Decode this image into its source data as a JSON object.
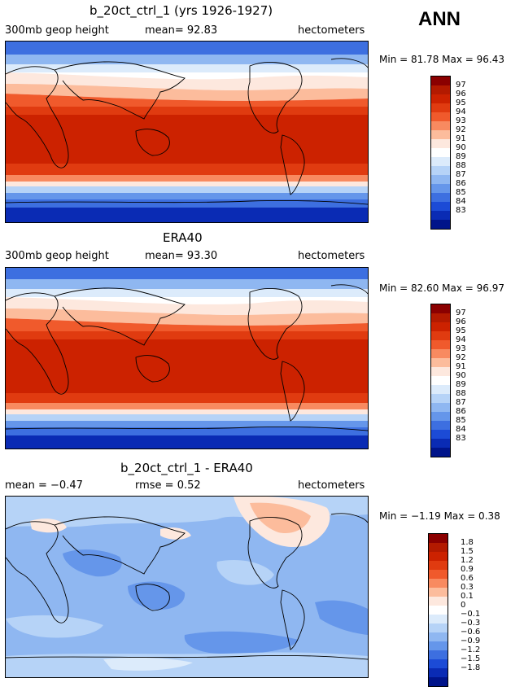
{
  "season": "ANN",
  "panels": [
    {
      "title": "b_20ct_ctrl_1 (yrs 1926-1927)",
      "left": "300mb geop height",
      "center": "mean=  92.83",
      "right": "hectometers",
      "minmax": "Min =  81.78 Max =  96.43",
      "colorbar_labels": [
        "97",
        "96",
        "95",
        "94",
        "93",
        "92",
        "91",
        "90",
        "89",
        "88",
        "87",
        "86",
        "85",
        "84",
        "83"
      ]
    },
    {
      "title": "ERA40",
      "left": "300mb geop height",
      "center": "mean=  93.30",
      "right": "hectometers",
      "minmax": "Min =  82.60 Max =  96.97",
      "colorbar_labels": [
        "97",
        "96",
        "95",
        "94",
        "93",
        "92",
        "91",
        "90",
        "89",
        "88",
        "87",
        "86",
        "85",
        "84",
        "83"
      ]
    },
    {
      "title": "b_20ct_ctrl_1 - ERA40",
      "left": "mean =  −0.47",
      "center": "rmse =   0.52",
      "right": "hectometers",
      "minmax": "Min =  −1.19 Max =   0.38",
      "colorbar_labels": [
        "1.8",
        "1.5",
        "1.2",
        "0.9",
        "0.6",
        "0.3",
        "0.1",
        "0",
        "−0.1",
        "−0.3",
        "−0.6",
        "−0.9",
        "−1.2",
        "−1.5",
        "−1.8"
      ]
    }
  ],
  "colors": {
    "scale": [
      "#8b0000",
      "#b31a00",
      "#cc2200",
      "#e03b10",
      "#f05a2c",
      "#f88a60",
      "#fcbc9c",
      "#fde8de",
      "#ffffff",
      "#dcebfb",
      "#b6d3f7",
      "#8fb7f1",
      "#6596ea",
      "#3d6fe0",
      "#1c4bd6",
      "#0a2bb4",
      "#00148a"
    ],
    "land_outline": "#000000"
  }
}
